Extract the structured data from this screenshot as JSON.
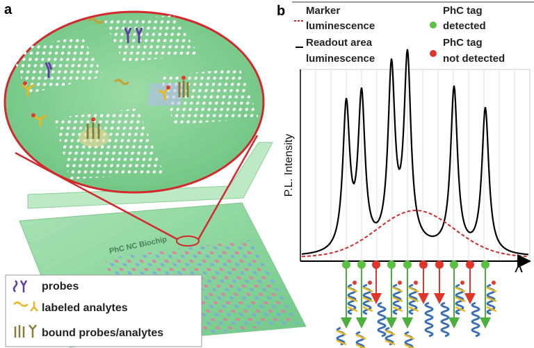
{
  "panel_a": {
    "label": "a",
    "chip_label": "PhC NC Biochip",
    "legend": [
      "probes",
      "labeled analytes",
      "bound probes/analytes"
    ]
  },
  "panel_b": {
    "label": "b",
    "legend": [
      [
        "Marker",
        "luminescence"
      ],
      [
        "Readout area",
        "luminescence"
      ],
      [
        "PhC tag",
        "detected"
      ],
      [
        "PhC tag",
        "not detected"
      ]
    ],
    "y_label": "P.L. Intensity",
    "x_label": "λ"
  }
}
